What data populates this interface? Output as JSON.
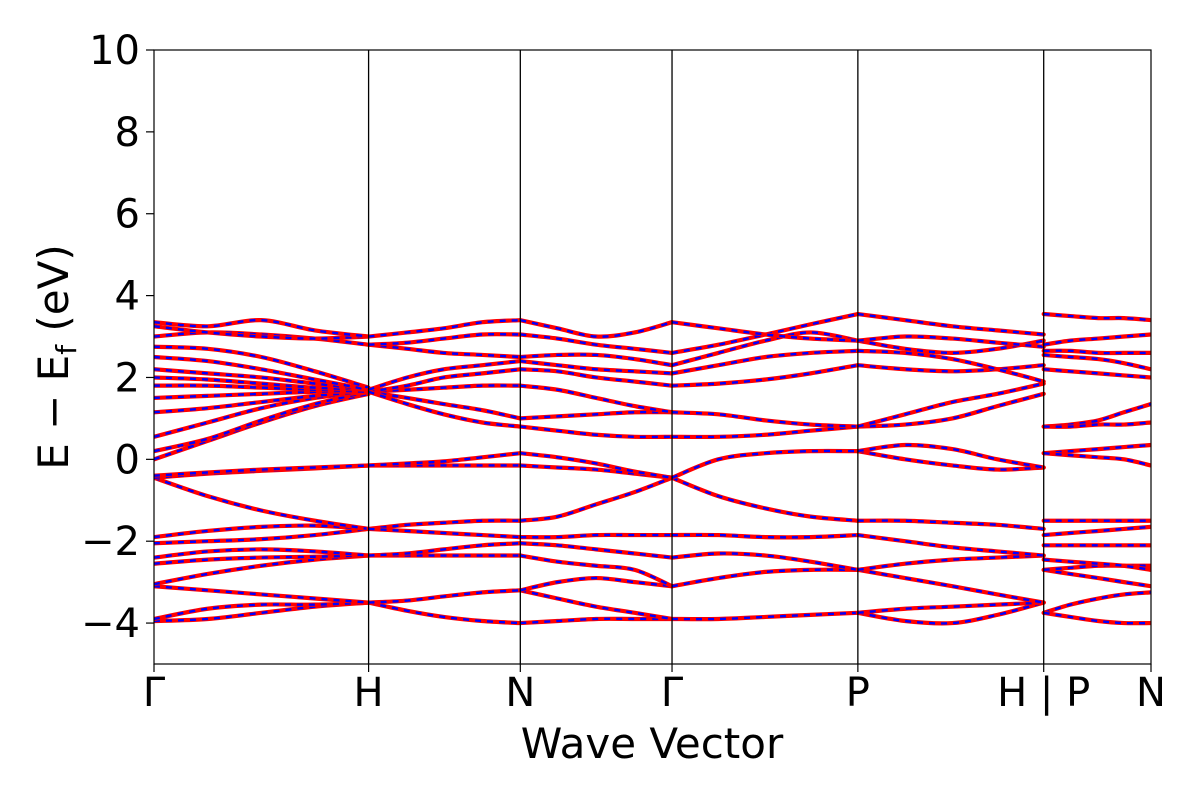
{
  "chart_data": {
    "type": "line",
    "title": "",
    "xlabel": "Wave Vector",
    "ylabel": {
      "prefix": "E − E",
      "subscript": "f",
      "suffix": " (eV)"
    },
    "ylim": [
      -5,
      10
    ],
    "yticks": [
      -4,
      -2,
      0,
      2,
      4,
      6,
      8,
      10
    ],
    "ytick_labels": [
      "−4",
      "−2",
      "0",
      "2",
      "4",
      "6",
      "8",
      "10"
    ],
    "kpoints": [
      {
        "label": "Γ",
        "x": 0.0
      },
      {
        "label": "H",
        "x": 1.0
      },
      {
        "label": "N",
        "x": 1.707
      },
      {
        "label": "Γ",
        "x": 2.414
      },
      {
        "label": "P",
        "x": 3.28
      },
      {
        "label": "H | P",
        "x": 4.146
      },
      {
        "label": "N",
        "x": 4.646
      }
    ],
    "xlim": [
      0,
      4.646
    ],
    "grid": false,
    "legend": "none",
    "series_colors": [
      "#ff0000",
      "#0000ff"
    ],
    "line_styles": [
      "solid",
      "dashed"
    ],
    "segments": [
      {
        "x": [
          0.0,
          0.25,
          0.5,
          0.75,
          1.0
        ],
        "bands": [
          [
            -3.95,
            -3.9,
            -3.75,
            -3.6,
            -3.5
          ],
          [
            -3.9,
            -3.65,
            -3.55,
            -3.55,
            -3.5
          ],
          [
            -3.1,
            -3.2,
            -3.3,
            -3.4,
            -3.5
          ],
          [
            -3.05,
            -2.8,
            -2.6,
            -2.45,
            -2.35
          ],
          [
            -2.55,
            -2.45,
            -2.4,
            -2.38,
            -2.35
          ],
          [
            -2.4,
            -2.25,
            -2.2,
            -2.25,
            -2.35
          ],
          [
            -2.05,
            -2.0,
            -1.95,
            -1.85,
            -1.7
          ],
          [
            -1.9,
            -1.75,
            -1.65,
            -1.62,
            -1.7
          ],
          [
            -0.45,
            -0.9,
            -1.25,
            -1.5,
            -1.7
          ],
          [
            -0.45,
            -0.35,
            -0.28,
            -0.22,
            -0.15
          ],
          [
            -0.4,
            -0.32,
            -0.25,
            -0.2,
            -0.15
          ],
          [
            0.0,
            0.45,
            0.9,
            1.3,
            1.6
          ],
          [
            0.2,
            0.5,
            0.95,
            1.35,
            1.65
          ],
          [
            0.55,
            0.9,
            1.25,
            1.5,
            1.65
          ],
          [
            1.15,
            1.25,
            1.4,
            1.55,
            1.65
          ],
          [
            1.5,
            1.55,
            1.6,
            1.65,
            1.65
          ],
          [
            1.8,
            1.8,
            1.75,
            1.7,
            1.65
          ],
          [
            2.0,
            1.95,
            1.85,
            1.75,
            1.7
          ],
          [
            2.2,
            2.1,
            2.0,
            1.85,
            1.7
          ],
          [
            2.5,
            2.4,
            2.2,
            1.95,
            1.7
          ],
          [
            2.75,
            2.7,
            2.5,
            2.15,
            1.75
          ],
          [
            3.0,
            3.1,
            3.05,
            2.95,
            2.8
          ],
          [
            3.25,
            3.1,
            3.0,
            2.95,
            3.0
          ],
          [
            3.35,
            3.25,
            3.4,
            3.15,
            3.0
          ]
        ]
      },
      {
        "x": [
          1.0,
          1.18,
          1.35,
          1.53,
          1.707
        ],
        "bands": [
          [
            -3.5,
            -3.7,
            -3.85,
            -3.95,
            -4.0
          ],
          [
            -3.5,
            -3.45,
            -3.35,
            -3.25,
            -3.2
          ],
          [
            -2.35,
            -2.35,
            -2.35,
            -2.35,
            -2.35
          ],
          [
            -2.35,
            -2.3,
            -2.2,
            -2.1,
            -2.05
          ],
          [
            -1.7,
            -1.6,
            -1.55,
            -1.5,
            -1.5
          ],
          [
            -1.7,
            -1.75,
            -1.8,
            -1.85,
            -1.9
          ],
          [
            -0.15,
            -0.15,
            -0.15,
            -0.15,
            -0.15
          ],
          [
            -0.15,
            -0.1,
            -0.05,
            0.05,
            0.15
          ],
          [
            1.65,
            1.5,
            1.35,
            1.2,
            1.0
          ],
          [
            1.65,
            1.7,
            1.75,
            1.8,
            1.8
          ],
          [
            1.65,
            1.8,
            2.0,
            2.1,
            2.2
          ],
          [
            1.7,
            2.0,
            2.2,
            2.3,
            2.4
          ],
          [
            2.8,
            2.7,
            2.6,
            2.55,
            2.5
          ],
          [
            2.8,
            2.85,
            2.95,
            3.05,
            3.05
          ],
          [
            3.0,
            3.1,
            3.2,
            3.35,
            3.4
          ],
          [
            1.65,
            1.35,
            1.1,
            0.9,
            0.8
          ]
        ]
      },
      {
        "x": [
          1.707,
          1.88,
          2.06,
          2.24,
          2.414
        ],
        "bands": [
          [
            -4.0,
            -3.95,
            -3.9,
            -3.9,
            -3.9
          ],
          [
            -3.2,
            -3.4,
            -3.6,
            -3.75,
            -3.9
          ],
          [
            -3.2,
            -3.0,
            -2.9,
            -3.0,
            -3.1
          ],
          [
            -2.35,
            -2.5,
            -2.6,
            -2.7,
            -3.1
          ],
          [
            -2.05,
            -2.1,
            -2.2,
            -2.3,
            -2.4
          ],
          [
            -1.9,
            -1.9,
            -1.85,
            -1.85,
            -1.85
          ],
          [
            -1.5,
            -1.4,
            -1.1,
            -0.8,
            -0.45
          ],
          [
            -0.15,
            -0.2,
            -0.25,
            -0.35,
            -0.45
          ],
          [
            0.15,
            0.05,
            -0.1,
            -0.3,
            -0.45
          ],
          [
            0.8,
            0.7,
            0.6,
            0.55,
            0.55
          ],
          [
            1.0,
            1.05,
            1.1,
            1.15,
            1.15
          ],
          [
            1.8,
            1.7,
            1.5,
            1.3,
            1.15
          ],
          [
            2.2,
            2.15,
            2.0,
            1.9,
            1.8
          ],
          [
            2.4,
            2.3,
            2.2,
            2.15,
            2.1
          ],
          [
            2.5,
            2.55,
            2.55,
            2.45,
            2.3
          ],
          [
            3.05,
            2.95,
            2.8,
            2.7,
            2.6
          ],
          [
            3.4,
            3.2,
            3.0,
            3.1,
            3.35
          ]
        ]
      },
      {
        "x": [
          2.414,
          2.63,
          2.85,
          3.06,
          3.28
        ],
        "bands": [
          [
            -3.9,
            -3.9,
            -3.85,
            -3.8,
            -3.75
          ],
          [
            -3.1,
            -2.9,
            -2.75,
            -2.7,
            -2.7
          ],
          [
            -2.4,
            -2.3,
            -2.35,
            -2.5,
            -2.7
          ],
          [
            -1.85,
            -1.85,
            -1.9,
            -1.9,
            -1.85
          ],
          [
            -0.45,
            -0.9,
            -1.2,
            -1.4,
            -1.5
          ],
          [
            -0.45,
            0.0,
            0.15,
            0.2,
            0.2
          ],
          [
            0.55,
            0.55,
            0.6,
            0.7,
            0.8
          ],
          [
            1.15,
            1.1,
            0.95,
            0.85,
            0.8
          ],
          [
            1.8,
            1.85,
            1.95,
            2.1,
            2.3
          ],
          [
            2.1,
            2.3,
            2.5,
            2.6,
            2.65
          ],
          [
            2.3,
            2.6,
            2.9,
            3.1,
            2.9
          ],
          [
            2.6,
            2.8,
            3.05,
            3.3,
            3.55
          ],
          [
            3.35,
            3.2,
            3.05,
            2.95,
            2.9
          ]
        ]
      },
      {
        "x": [
          3.28,
          3.5,
          3.72,
          3.93,
          4.146
        ],
        "bands": [
          [
            -3.75,
            -3.95,
            -4.0,
            -3.8,
            -3.5
          ],
          [
            -3.75,
            -3.65,
            -3.6,
            -3.55,
            -3.5
          ],
          [
            -2.7,
            -2.9,
            -3.1,
            -3.3,
            -3.5
          ],
          [
            -2.7,
            -2.55,
            -2.45,
            -2.4,
            -2.35
          ],
          [
            -1.85,
            -2.0,
            -2.15,
            -2.25,
            -2.35
          ],
          [
            -1.5,
            -1.5,
            -1.55,
            -1.6,
            -1.7
          ],
          [
            0.2,
            0.0,
            -0.15,
            -0.25,
            -0.2
          ],
          [
            0.2,
            0.35,
            0.25,
            0.0,
            -0.2
          ],
          [
            0.8,
            0.85,
            1.0,
            1.3,
            1.6
          ],
          [
            0.8,
            1.1,
            1.4,
            1.6,
            1.85
          ],
          [
            2.3,
            2.2,
            2.15,
            2.2,
            2.3
          ],
          [
            2.65,
            2.6,
            2.45,
            2.2,
            1.9
          ],
          [
            2.9,
            2.7,
            2.6,
            2.7,
            2.9
          ],
          [
            3.55,
            3.4,
            3.25,
            3.15,
            3.05
          ],
          [
            2.9,
            3.0,
            2.95,
            2.85,
            2.75
          ]
        ]
      },
      {
        "x": [
          4.146,
          4.27,
          4.4,
          4.52,
          4.646
        ],
        "bands": [
          [
            -3.75,
            -3.55,
            -3.4,
            -3.3,
            -3.25
          ],
          [
            -3.75,
            -3.85,
            -3.95,
            -4.0,
            -4.0
          ],
          [
            -2.7,
            -2.8,
            -2.9,
            -3.0,
            -3.1
          ],
          [
            -2.7,
            -2.65,
            -2.6,
            -2.6,
            -2.6
          ],
          [
            -2.45,
            -2.5,
            -2.55,
            -2.6,
            -2.7
          ],
          [
            -2.1,
            -2.1,
            -2.1,
            -2.1,
            -2.1
          ],
          [
            -1.85,
            -1.8,
            -1.75,
            -1.7,
            -1.65
          ],
          [
            -1.5,
            -1.5,
            -1.5,
            -1.5,
            -1.5
          ],
          [
            0.15,
            0.2,
            0.25,
            0.3,
            0.35
          ],
          [
            0.15,
            0.1,
            0.05,
            0.0,
            -0.15
          ],
          [
            0.8,
            0.85,
            0.95,
            1.15,
            1.35
          ],
          [
            0.8,
            0.8,
            0.85,
            0.85,
            0.9
          ],
          [
            2.2,
            2.15,
            2.1,
            2.05,
            2.0
          ],
          [
            2.55,
            2.5,
            2.45,
            2.35,
            2.2
          ],
          [
            2.65,
            2.65,
            2.6,
            2.6,
            2.6
          ],
          [
            2.8,
            2.9,
            2.95,
            3.0,
            3.05
          ],
          [
            3.55,
            3.5,
            3.45,
            3.45,
            3.4
          ]
        ]
      }
    ]
  }
}
